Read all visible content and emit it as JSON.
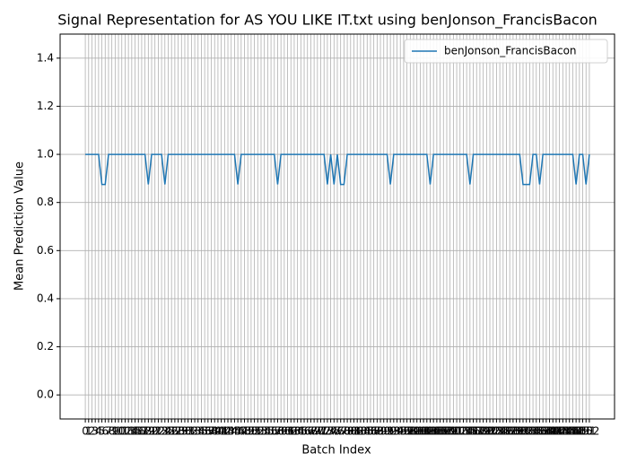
{
  "chart_data": {
    "type": "line",
    "title": "Signal Representation for AS YOU LIKE IT.txt using benJonson_FrancisBacon",
    "x_label": "Batch Index",
    "y_label": "Mean Prediction Value",
    "x": [
      0,
      1,
      2,
      3,
      4,
      5,
      6,
      7,
      8,
      9,
      10,
      11,
      12,
      13,
      14,
      15,
      16,
      17,
      18,
      19,
      20,
      21,
      22,
      23,
      24,
      25,
      26,
      27,
      28,
      29,
      30,
      31,
      32,
      33,
      34,
      35,
      36,
      37,
      38,
      39,
      40,
      41,
      42,
      43,
      44,
      45,
      46,
      47,
      48,
      49,
      50,
      51,
      52,
      53,
      54,
      55,
      56,
      57,
      58,
      59,
      60,
      61,
      62,
      63,
      64,
      65,
      66,
      67,
      68,
      69,
      70,
      71,
      72,
      73,
      74,
      75,
      76,
      77,
      78,
      79,
      80,
      81,
      82,
      83,
      84,
      85,
      86,
      87,
      88,
      89,
      90,
      91,
      92,
      93,
      94,
      95,
      96,
      97,
      98,
      99,
      100,
      101,
      102,
      103,
      104,
      105,
      106,
      107,
      108,
      109,
      110,
      111,
      112,
      113,
      114,
      115,
      116,
      117,
      118,
      119,
      120,
      121,
      122,
      123,
      124,
      125,
      126,
      127,
      128,
      129,
      130,
      131,
      132,
      133,
      134,
      135,
      136,
      137,
      138,
      139,
      140,
      141,
      142,
      143,
      144,
      145,
      146,
      147,
      148,
      149,
      150,
      151,
      152
    ],
    "series": [
      {
        "name": "benJonson_FrancisBacon",
        "color": "#1f77b4",
        "values": [
          1,
          1,
          1,
          1,
          1,
          0.875,
          0.875,
          1,
          1,
          1,
          1,
          1,
          1,
          1,
          1,
          1,
          1,
          1,
          1,
          0.875,
          1,
          1,
          1,
          1,
          0.875,
          1,
          1,
          1,
          1,
          1,
          1,
          1,
          1,
          1,
          1,
          1,
          1,
          1,
          1,
          1,
          1,
          1,
          1,
          1,
          1,
          1,
          0.875,
          1,
          1,
          1,
          1,
          1,
          1,
          1,
          1,
          1,
          1,
          1,
          0.875,
          1,
          1,
          1,
          1,
          1,
          1,
          1,
          1,
          1,
          1,
          1,
          1,
          1,
          1,
          0.875,
          1,
          0.875,
          1,
          0.875,
          0.875,
          1,
          1,
          1,
          1,
          1,
          1,
          1,
          1,
          1,
          1,
          1,
          1,
          1,
          0.875,
          1,
          1,
          1,
          1,
          1,
          1,
          1,
          1,
          1,
          1,
          1,
          0.875,
          1,
          1,
          1,
          1,
          1,
          1,
          1,
          1,
          1,
          1,
          1,
          0.875,
          1,
          1,
          1,
          1,
          1,
          1,
          1,
          1,
          1,
          1,
          1,
          1,
          1,
          1,
          1,
          0.875,
          0.875,
          0.875,
          1,
          1,
          0.875,
          1,
          1,
          1,
          1,
          1,
          1,
          1,
          1,
          1,
          1,
          0.875,
          1,
          1,
          0.875,
          1
        ]
      }
    ],
    "xlim": [
      -7.6,
      159.6
    ],
    "xticks": [
      0,
      1,
      2,
      3,
      4,
      5,
      6,
      7,
      8,
      9,
      10,
      11,
      12,
      13,
      14,
      15,
      16,
      17,
      18,
      19,
      20,
      21,
      22,
      23,
      24,
      25,
      26,
      27,
      28,
      29,
      30,
      31,
      32,
      33,
      34,
      35,
      36,
      37,
      38,
      39,
      40,
      41,
      42,
      43,
      44,
      45,
      46,
      47,
      48,
      49,
      50,
      51,
      52,
      53,
      54,
      55,
      56,
      57,
      58,
      59,
      60,
      61,
      62,
      63,
      64,
      65,
      66,
      67,
      68,
      69,
      70,
      71,
      72,
      73,
      74,
      75,
      76,
      77,
      78,
      79,
      80,
      81,
      82,
      83,
      84,
      85,
      86,
      87,
      88,
      89,
      90,
      91,
      92,
      93,
      94,
      95,
      96,
      97,
      98,
      99,
      100,
      101,
      102,
      103,
      104,
      105,
      106,
      107,
      108,
      109,
      110,
      111,
      112,
      113,
      114,
      115,
      116,
      117,
      118,
      119,
      120,
      121,
      122,
      123,
      124,
      125,
      126,
      127,
      128,
      129,
      130,
      131,
      132,
      133,
      134,
      135,
      136,
      137,
      138,
      139,
      140,
      141,
      142,
      143,
      144,
      145,
      146,
      147,
      148,
      149,
      150,
      151,
      152
    ],
    "ylim": [
      -0.1,
      1.5
    ],
    "yticks": [
      {
        "value": 0,
        "label": "0.0"
      },
      0.2,
      0.4,
      0.6,
      0.8,
      {
        "value": 1,
        "label": "1.0"
      },
      1.2,
      1.4
    ],
    "grid": true,
    "legend": "upper right"
  }
}
